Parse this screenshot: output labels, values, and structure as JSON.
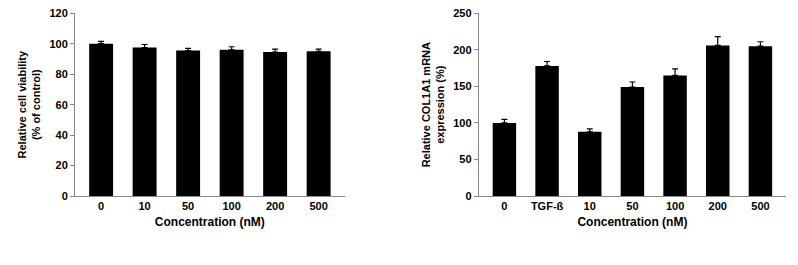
{
  "chart_data": [
    {
      "type": "bar",
      "x_label": "Concentration (nM)",
      "y_label": "Relative cell viability\n(% of control)",
      "categories": [
        "0",
        "10",
        "50",
        "100",
        "200",
        "500"
      ],
      "values": [
        100,
        97.5,
        95.5,
        96,
        94.5,
        95
      ],
      "errors": [
        1.5,
        2,
        1.5,
        2,
        2,
        1.5
      ],
      "color": "#000000",
      "ylim": [
        0,
        120
      ],
      "yticks": [
        0,
        20,
        40,
        60,
        80,
        100,
        120
      ],
      "grid": false
    },
    {
      "type": "bar",
      "x_label": "Concentration (nM)",
      "y_label": "Relative COL1A1 mRNA\nexpression (%)",
      "categories": [
        "0",
        "TGF-ß",
        "10",
        "50",
        "100",
        "200",
        "500"
      ],
      "values": [
        100,
        178,
        88,
        149,
        165,
        206,
        205
      ],
      "errors": [
        5,
        6,
        4,
        7,
        9,
        12,
        6
      ],
      "color": "#000000",
      "ylim": [
        0,
        250
      ],
      "yticks": [
        0,
        50,
        100,
        150,
        200,
        250
      ],
      "grid": false
    }
  ]
}
